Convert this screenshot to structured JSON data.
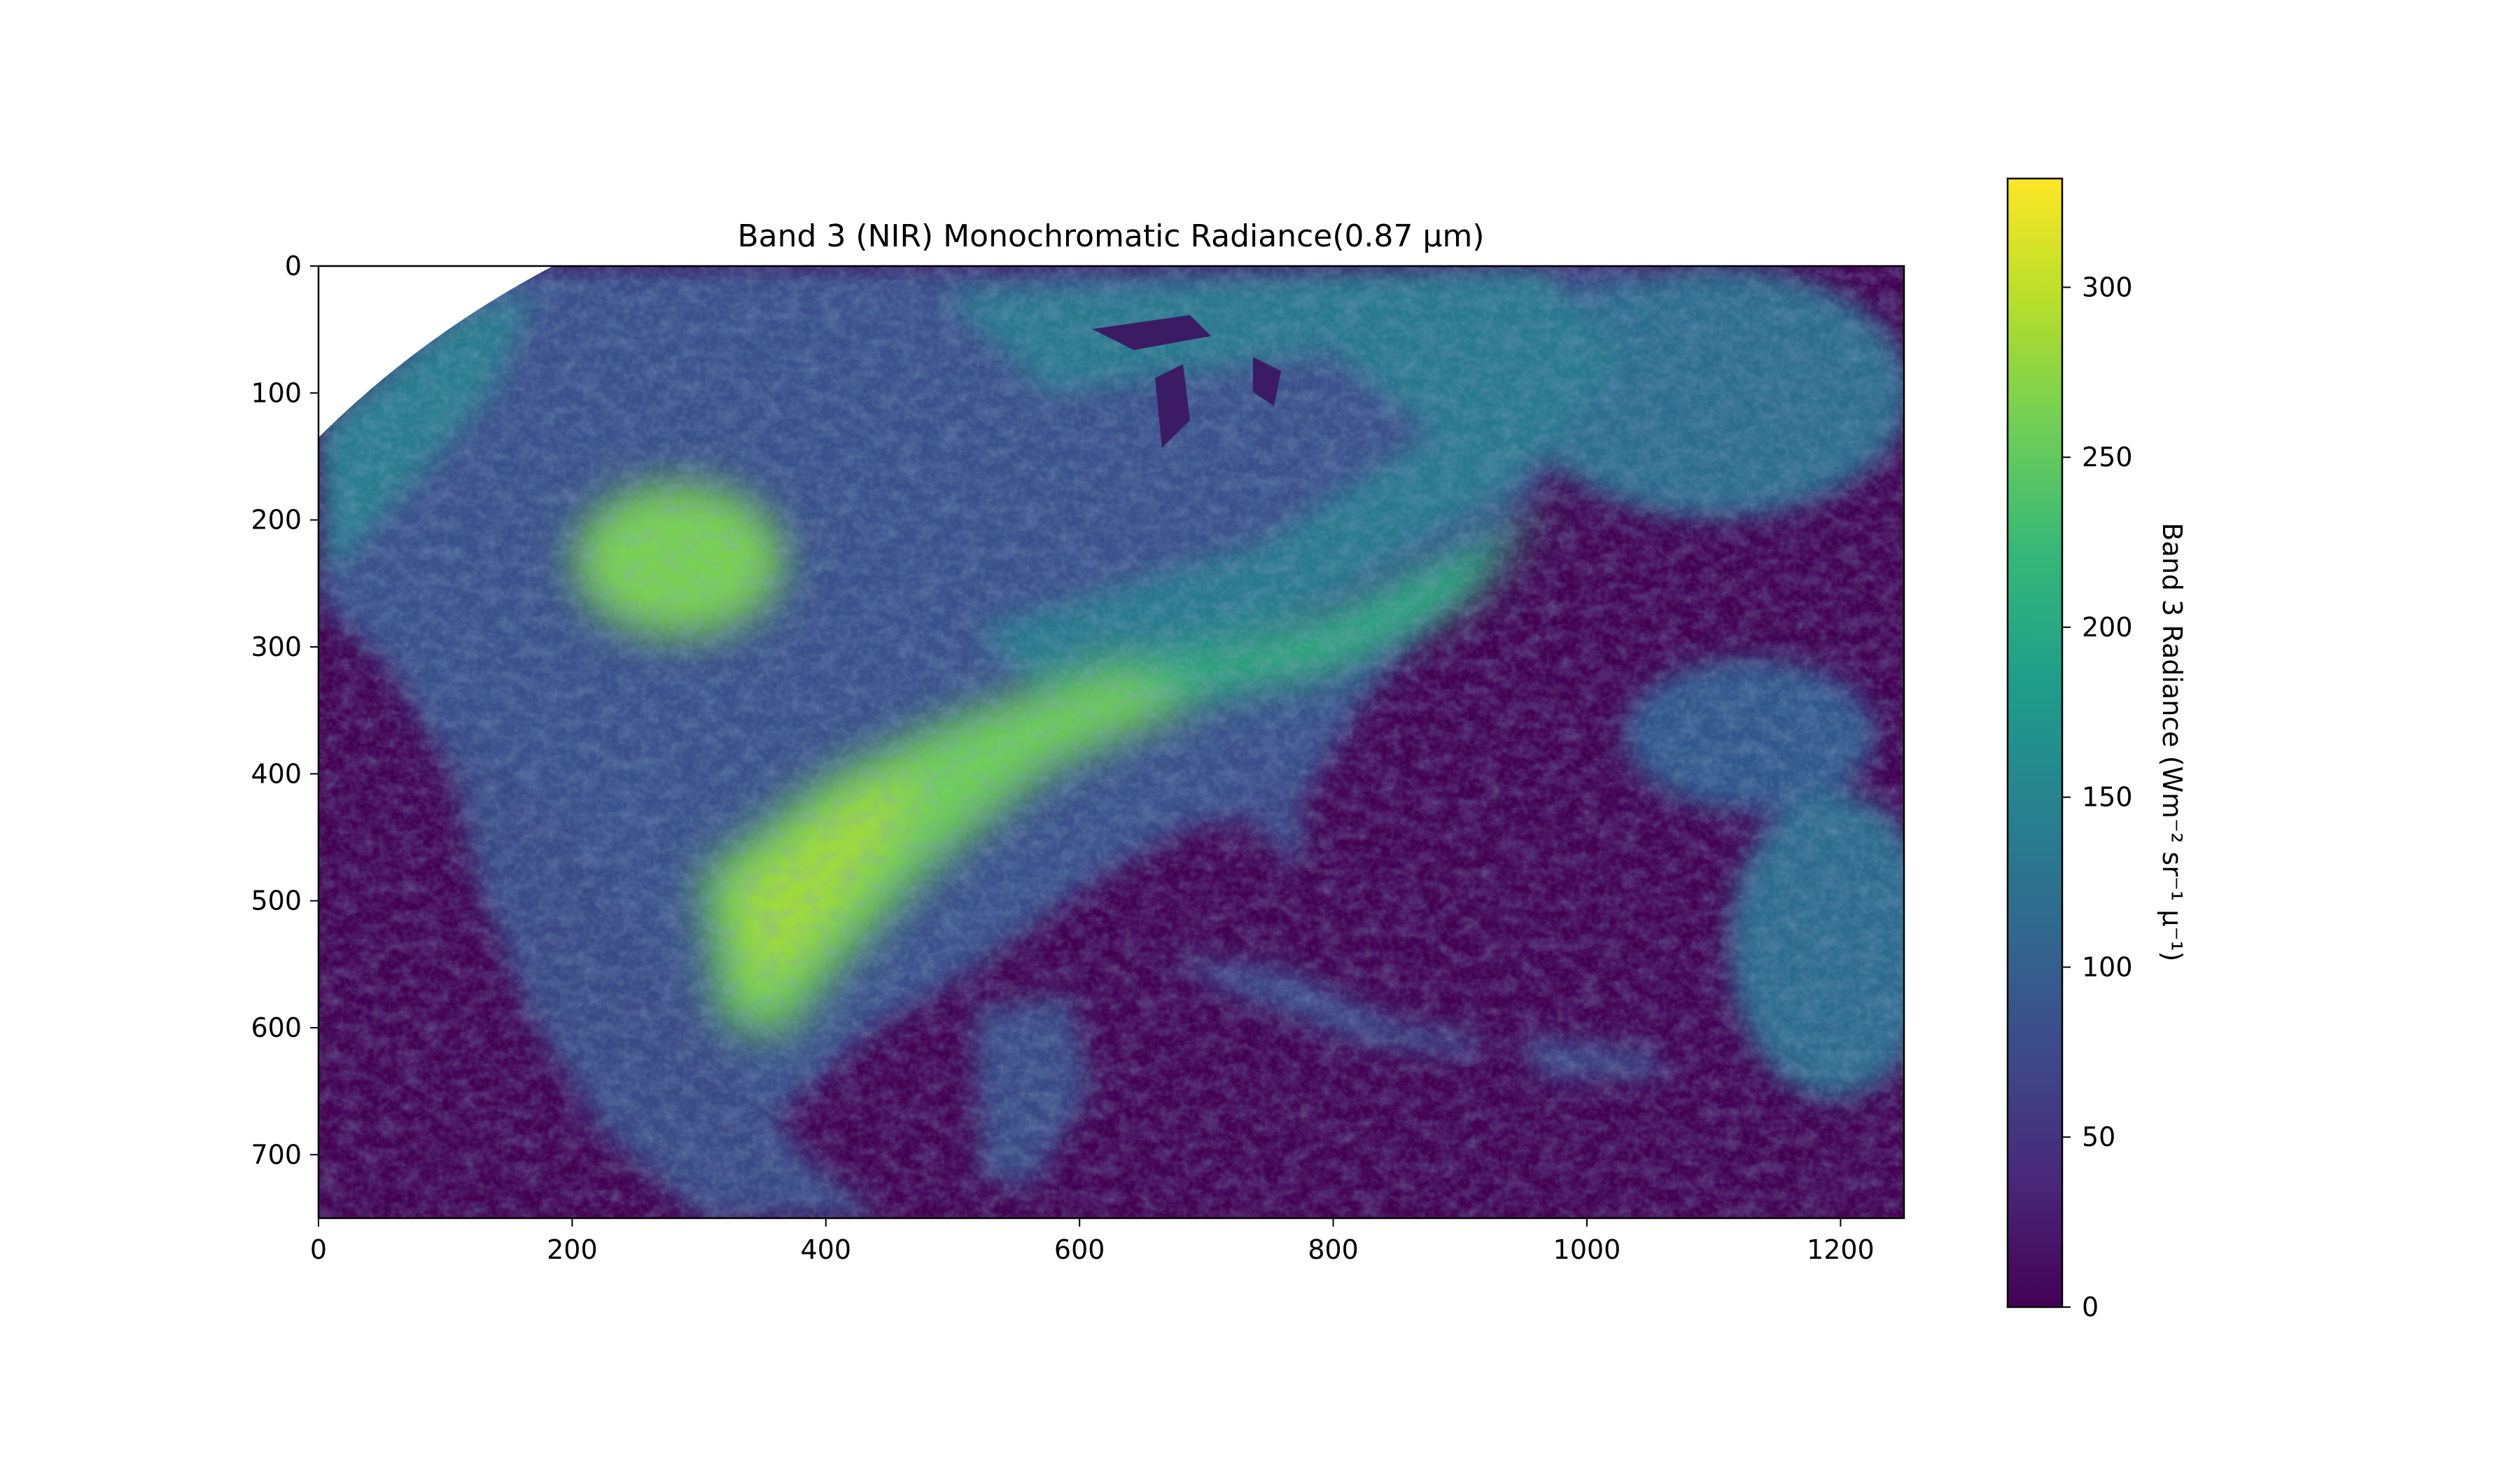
{
  "chart_data": {
    "type": "heatmap",
    "title": "Band 3 (NIR) Monochromatic Radiance(0.87 µm)",
    "xlabel": "",
    "ylabel": "",
    "xlim": [
      0,
      1250
    ],
    "ylim": [
      750,
      0
    ],
    "x_ticks": [
      0,
      200,
      400,
      600,
      800,
      1000,
      1200
    ],
    "y_ticks": [
      0,
      100,
      200,
      300,
      400,
      500,
      600,
      700
    ],
    "grid": false,
    "colormap": "viridis",
    "colormap_stops": [
      "#440154",
      "#482878",
      "#3e4989",
      "#31688e",
      "#26828e",
      "#1f9e89",
      "#35b779",
      "#6ece58",
      "#b5de2b",
      "#fde725"
    ],
    "colorbar": {
      "label": "Band 3 Radiance (Wm⁻² sr⁻¹ µ⁻¹)",
      "range": [
        0,
        332
      ],
      "ticks": [
        0,
        50,
        100,
        150,
        200,
        250,
        300
      ],
      "position": "right"
    },
    "description_regions": [
      {
        "x": [
          340,
          560
        ],
        "y": [
          380,
          640
        ],
        "value": 270
      },
      {
        "x": [
          200,
          330
        ],
        "y": [
          200,
          300
        ],
        "value": 230
      },
      {
        "x": [
          500,
          1000
        ],
        "y": [
          0,
          320
        ],
        "value": 140
      },
      {
        "x": [
          0,
          200
        ],
        "y": [
          120,
          300
        ],
        "value": 140
      },
      {
        "x": [
          1050,
          1250
        ],
        "y": [
          500,
          700
        ],
        "value": 110
      },
      {
        "x": [
          650,
          1250
        ],
        "y": [
          380,
          750
        ],
        "value": 8
      }
    ]
  }
}
